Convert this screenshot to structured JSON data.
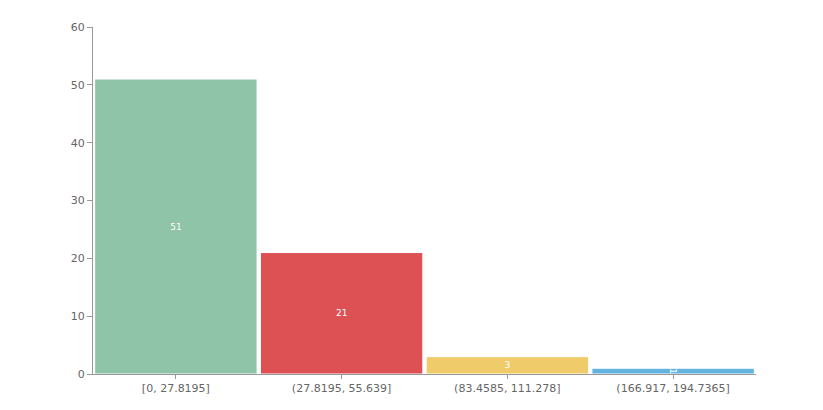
{
  "chart_data": {
    "type": "bar",
    "categories": [
      "[0, 27.8195]",
      "(27.8195, 55.639]",
      "(83.4585, 111.278]",
      "(166.917, 194.7365]"
    ],
    "values": [
      51,
      21,
      3,
      1
    ],
    "colors": [
      "#8fc4a9",
      "#dd5155",
      "#f0cb69",
      "#62b3e0"
    ],
    "ylim": [
      0,
      60
    ],
    "yticks": [
      0,
      10,
      20,
      30,
      40,
      50,
      60
    ],
    "grid": false,
    "data_labels": true
  }
}
